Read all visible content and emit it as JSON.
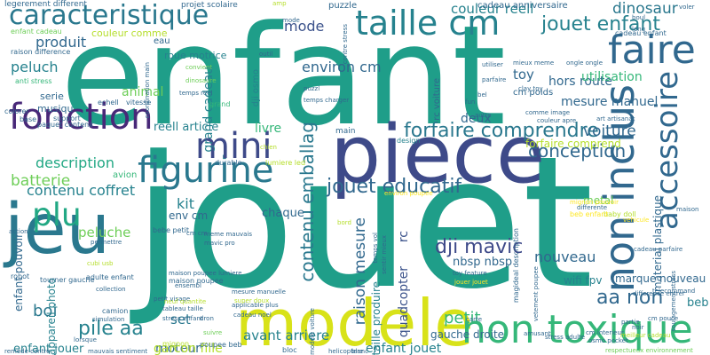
{
  "palette": {
    "purple": "#440154",
    "indigo": "#3e4a89",
    "blue": "#31688e",
    "teal_blue": "#26828e",
    "teal": "#1f9e89",
    "green": "#35b779",
    "light_green": "#6ece58",
    "lime": "#b5de2b",
    "yellow": "#fde725",
    "background": "#ffffff"
  },
  "words": [
    {
      "text": "enfant",
      "color": "#1f9e89"
    },
    {
      "text": "jouet",
      "color": "#1f9e89"
    },
    {
      "text": "piece",
      "color": "#3e4a89"
    },
    {
      "text": "modele",
      "color": "#d8e219"
    },
    {
      "text": "jeu",
      "color": "#2a788e"
    },
    {
      "text": "caracteristique",
      "color": "#2a788e"
    },
    {
      "text": "taille cm",
      "color": "#26828e"
    },
    {
      "text": "faire",
      "color": "#31688e"
    },
    {
      "text": "fonction",
      "color": "#482878"
    },
    {
      "text": "non toxique",
      "color": "#35b779"
    },
    {
      "text": "figurine",
      "color": "#2a788e"
    },
    {
      "text": "mini",
      "color": "#3e4a89"
    },
    {
      "text": "accessoire",
      "color": "#31688e"
    },
    {
      "text": "non inclus",
      "color": "#31688e"
    },
    {
      "text": "plu",
      "color": "#22a884"
    },
    {
      "text": "jouet enfant",
      "color": "#26828e"
    },
    {
      "text": "couleur reell",
      "color": "#26828e"
    },
    {
      "text": "dinosaur",
      "color": "#2a788e"
    },
    {
      "text": "produit",
      "color": "#31688e"
    },
    {
      "text": "peluch",
      "color": "#26828e"
    },
    {
      "text": "mode",
      "color": "#3b528b"
    },
    {
      "text": "environ cm",
      "color": "#31688e"
    },
    {
      "text": "forfaire comprendre",
      "color": "#2a788e"
    },
    {
      "text": "conception",
      "color": "#31688e"
    },
    {
      "text": "jouet educatif",
      "color": "#31688e"
    },
    {
      "text": "contenu coffret",
      "color": "#26828e"
    },
    {
      "text": "description",
      "color": "#22a884"
    },
    {
      "text": "batterie",
      "color": "#6ece58"
    },
    {
      "text": "grand cadeau",
      "color": "#26828e"
    },
    {
      "text": "contenu emballag",
      "color": "#2a788e"
    },
    {
      "text": "raison mesure",
      "color": "#31688e"
    },
    {
      "text": "dji mavic",
      "color": "#3e4a89"
    },
    {
      "text": "nouveau",
      "color": "#31688e"
    },
    {
      "text": "petit",
      "color": "#35b779"
    },
    {
      "text": "aa non",
      "color": "#31688e"
    },
    {
      "text": "pile aa",
      "color": "#26828e"
    },
    {
      "text": "boi",
      "color": "#2a788e"
    },
    {
      "text": "avant arriere",
      "color": "#26828e"
    },
    {
      "text": "moteur",
      "color": "#31688e"
    },
    {
      "text": "garcon fille",
      "color": "#b5de2b"
    },
    {
      "text": "enfant jouer",
      "color": "#26828e"
    },
    {
      "text": "enfant jouet",
      "color": "#26828e"
    },
    {
      "text": "peluche",
      "color": "#6ece58"
    },
    {
      "text": "kit",
      "color": "#26828e"
    },
    {
      "text": "set",
      "color": "#2a788e"
    },
    {
      "text": "voiture",
      "color": "#31688e"
    },
    {
      "text": "animal",
      "color": "#6ece58"
    },
    {
      "text": "toy",
      "color": "#31688e"
    },
    {
      "text": "hors route",
      "color": "#31688e"
    },
    {
      "text": "mesure manuel",
      "color": "#31688e"
    },
    {
      "text": "utilisation",
      "color": "#35b779"
    },
    {
      "text": "deux",
      "color": "#31688e"
    },
    {
      "text": "livre",
      "color": "#35b779"
    },
    {
      "text": "reell article",
      "color": "#26828e"
    },
    {
      "text": "quadcopter",
      "color": "#3b528b"
    },
    {
      "text": "rc",
      "color": "#3b528b"
    },
    {
      "text": "taille produire",
      "color": "#26828e"
    },
    {
      "text": "chaque",
      "color": "#31688e"
    },
    {
      "text": "nbsp nbsp",
      "color": "#31688e"
    },
    {
      "text": "gauche droite",
      "color": "#31688e"
    },
    {
      "text": "metal",
      "color": "#6ece58"
    },
    {
      "text": "beb",
      "color": "#26828e"
    },
    {
      "text": "marque nouveau",
      "color": "#31688e"
    },
    {
      "text": "wifi fpv",
      "color": "#26828e"
    },
    {
      "text": "serie",
      "color": "#31688e"
    },
    {
      "text": "musiqu",
      "color": "#31688e"
    },
    {
      "text": "enfant pouvoir",
      "color": "#31688e"
    },
    {
      "text": "appareil photo",
      "color": "#26828e"
    },
    {
      "text": "env cm",
      "color": "#31688e"
    },
    {
      "text": "material plastique",
      "color": "#31688e"
    },
    {
      "text": "forfaire comprend",
      "color": "#b5de2b"
    },
    {
      "text": "roue motrice",
      "color": "#26828e"
    },
    {
      "text": "couleur comme",
      "color": "#b5de2b"
    },
    {
      "text": "cadeau anniversaire",
      "color": "#31688e"
    },
    {
      "text": "projet scolaire",
      "color": "#31688e"
    },
    {
      "text": "puzzle",
      "color": "#31688e"
    },
    {
      "text": "eau",
      "color": "#31688e"
    },
    {
      "text": "dji osmo",
      "color": "#26828e"
    },
    {
      "text": "rc voiture",
      "color": "#31688e"
    },
    {
      "text": "cm poids",
      "color": "#31688e"
    },
    {
      "text": "grand",
      "color": "#35b779"
    },
    {
      "text": "design",
      "color": "#26828e"
    },
    {
      "text": "main",
      "color": "#31688e"
    },
    {
      "text": "baby doll",
      "color": "#b5de2b"
    },
    {
      "text": "beb enfant",
      "color": "#fde725"
    },
    {
      "text": "maison poupee",
      "color": "#31688e"
    },
    {
      "text": "legerement different",
      "color": "#31688e"
    },
    {
      "text": "enfant cadeau",
      "color": "#6ece58"
    },
    {
      "text": "raison difference",
      "color": "#31688e"
    },
    {
      "text": "anti stress",
      "color": "#35b779"
    },
    {
      "text": "colorer",
      "color": "#31688e"
    },
    {
      "text": "support",
      "color": "#31688e"
    },
    {
      "text": "base",
      "color": "#31688e"
    },
    {
      "text": "paquet contenir",
      "color": "#31688e"
    },
    {
      "text": "echell",
      "color": "#31688e"
    },
    {
      "text": "vitesse",
      "color": "#31688e"
    },
    {
      "text": "durable",
      "color": "#31688e"
    },
    {
      "text": "lumiere led",
      "color": "#b5de2b"
    },
    {
      "text": "chien",
      "color": "#b5de2b"
    },
    {
      "text": "action",
      "color": "#31688e"
    },
    {
      "text": "permettre",
      "color": "#31688e"
    },
    {
      "text": "avion",
      "color": "#35b779"
    },
    {
      "text": "bebe petit",
      "color": "#31688e"
    },
    {
      "text": "adulte enfant",
      "color": "#31688e"
    },
    {
      "text": "robot",
      "color": "#31688e"
    },
    {
      "text": "tourner gauche",
      "color": "#31688e"
    },
    {
      "text": "collection",
      "color": "#31688e"
    },
    {
      "text": "petit visage",
      "color": "#31688e"
    },
    {
      "text": "mesure manuelle",
      "color": "#31688e"
    },
    {
      "text": "applicable plus",
      "color": "#31688e"
    },
    {
      "text": "cadeau noel",
      "color": "#31688e"
    },
    {
      "text": "ensembl",
      "color": "#31688e"
    },
    {
      "text": "tableau taille",
      "color": "#31688e"
    },
    {
      "text": "neuf quantite",
      "color": "#b5de2b"
    },
    {
      "text": "dron",
      "color": "#31688e"
    },
    {
      "text": "super doux",
      "color": "#b5de2b"
    },
    {
      "text": "camion",
      "color": "#31688e"
    },
    {
      "text": "simulation",
      "color": "#31688e"
    },
    {
      "text": "lorsque",
      "color": "#31688e"
    },
    {
      "text": "remede contre",
      "color": "#31688e"
    },
    {
      "text": "mauvais sentiment",
      "color": "#31688e"
    },
    {
      "text": "poupee beb",
      "color": "#31688e"
    },
    {
      "text": "mignon",
      "color": "#b5de2b"
    },
    {
      "text": "suivre",
      "color": "#6ece58"
    },
    {
      "text": "stress enfant",
      "color": "#31688e"
    },
    {
      "text": "bloc",
      "color": "#31688e"
    },
    {
      "text": "helicoptere",
      "color": "#31688e"
    },
    {
      "text": "modele voiture",
      "color": "#31688e"
    },
    {
      "text": "blanc",
      "color": "#31688e"
    },
    {
      "text": "amusant",
      "color": "#31688e"
    },
    {
      "text": "carte",
      "color": "#31688e"
    },
    {
      "text": "osmo pocket",
      "color": "#31688e"
    },
    {
      "text": "cm interieur",
      "color": "#31688e"
    },
    {
      "text": "respectueux environnement",
      "color": "#6ece58"
    },
    {
      "text": "stress adulte",
      "color": "#31688e"
    },
    {
      "text": "meilleur cadeau",
      "color": "#b5de2b"
    },
    {
      "text": "cm pouce",
      "color": "#31688e"
    },
    {
      "text": "soulagement stress",
      "color": "#31688e"
    },
    {
      "text": "telecommand",
      "color": "#31688e"
    },
    {
      "text": "difference entrer",
      "color": "#31688e"
    },
    {
      "text": "cadeau parfaire",
      "color": "#31688e"
    },
    {
      "text": "vehicule",
      "color": "#fde725"
    },
    {
      "text": "maison",
      "color": "#31688e"
    },
    {
      "text": "toy feature",
      "color": "#31688e"
    },
    {
      "text": "jouer jouet",
      "color": "#fde725"
    },
    {
      "text": "vetement poupee",
      "color": "#31688e"
    },
    {
      "text": "ongle ongle",
      "color": "#31688e"
    },
    {
      "text": "voler",
      "color": "#31688e"
    },
    {
      "text": "boul",
      "color": "#31688e"
    },
    {
      "text": "long",
      "color": "#31688e"
    },
    {
      "text": "clay toy",
      "color": "#31688e"
    },
    {
      "text": "art artisanat",
      "color": "#31688e"
    },
    {
      "text": "bel",
      "color": "#31688e"
    },
    {
      "text": "fun",
      "color": "#31688e"
    },
    {
      "text": "autre",
      "color": "#31688e"
    },
    {
      "text": "couleur apre",
      "color": "#31688e"
    },
    {
      "text": "comme image",
      "color": "#31688e"
    },
    {
      "text": "parfaire",
      "color": "#31688e"
    },
    {
      "text": "utiliser",
      "color": "#31688e"
    },
    {
      "text": "mieux meme",
      "color": "#31688e"
    },
    {
      "text": "temps reel",
      "color": "#31688e"
    },
    {
      "text": "dinosaure",
      "color": "#6ece58"
    },
    {
      "text": "convient",
      "color": "#6ece58"
    },
    {
      "text": "outil",
      "color": "#31688e"
    },
    {
      "text": "differente",
      "color": "#31688e"
    },
    {
      "text": "noir",
      "color": "#31688e"
    },
    {
      "text": "partie",
      "color": "#31688e"
    },
    {
      "text": "mignon pouvoir",
      "color": "#fde725"
    },
    {
      "text": "sentir mieux",
      "color": "#31688e"
    },
    {
      "text": "contre stress",
      "color": "#31688e"
    },
    {
      "text": "temps charger",
      "color": "#31688e"
    },
    {
      "text": "puzzl",
      "color": "#31688e"
    },
    {
      "text": "coordination main",
      "color": "#31688e"
    },
    {
      "text": "meme mauvais",
      "color": "#31688e"
    },
    {
      "text": "mavic pro",
      "color": "#31688e"
    },
    {
      "text": "amp",
      "color": "#b5de2b"
    },
    {
      "text": "cadeau enfant",
      "color": "#31688e"
    },
    {
      "text": "temps vol",
      "color": "#31688e"
    },
    {
      "text": "maison poupee lumiere",
      "color": "#31688e"
    },
    {
      "text": "cubi usb",
      "color": "#b5de2b"
    },
    {
      "text": "cm cm",
      "color": "#31688e"
    },
    {
      "text": "magideal description",
      "color": "#31688e"
    },
    {
      "text": "environ poupee",
      "color": "#fde725"
    },
    {
      "text": "bord",
      "color": "#b5de2b"
    },
    {
      "text": "mode",
      "color": "#31688e"
    }
  ]
}
